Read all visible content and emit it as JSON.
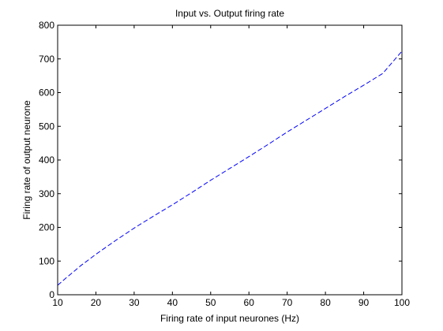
{
  "chart_data": {
    "type": "line",
    "title": "Input vs. Output firing rate",
    "xlabel": "Firing rate of input neurones (Hz)",
    "ylabel": "Firing rate of output neurone",
    "xlim": [
      10,
      100
    ],
    "ylim": [
      0,
      800
    ],
    "xticks": [
      10,
      20,
      30,
      40,
      50,
      60,
      70,
      80,
      90,
      100
    ],
    "yticks": [
      0,
      100,
      200,
      300,
      400,
      500,
      600,
      700,
      800
    ],
    "grid": false,
    "legend": "none",
    "series": [
      {
        "color": "#0000ff",
        "line_style": "dashed",
        "x": [
          10,
          12,
          14,
          16,
          18,
          20,
          25,
          30,
          35,
          40,
          45,
          50,
          55,
          60,
          65,
          70,
          75,
          80,
          85,
          90,
          95,
          100
        ],
        "y": [
          28,
          48,
          67,
          86,
          103,
          120,
          160,
          198,
          233,
          267,
          303,
          340,
          375,
          410,
          446,
          483,
          518,
          553,
          588,
          622,
          657,
          723
        ]
      }
    ]
  }
}
